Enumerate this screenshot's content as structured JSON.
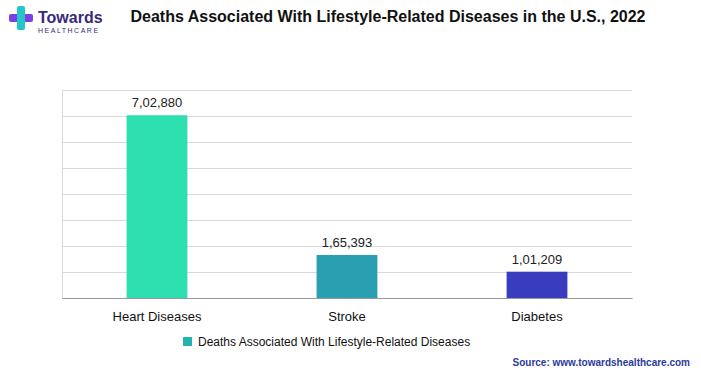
{
  "chart_data": {
    "type": "bar",
    "title": "Deaths Associated With Lifestyle-Related Diseases in the U.S., 2022",
    "brand": "Towards",
    "brand_sub": "HEALTHCARE",
    "source": "Source: www.towardshealthcare.com",
    "categories": [
      "Heart Diseases",
      "Stroke",
      "Diabetes"
    ],
    "series": [
      {
        "name": "Deaths Associated With Lifestyle-Related Diseases",
        "values": [
          702880,
          165393,
          101209
        ],
        "value_labels": [
          "7,02,880",
          "1,65,393",
          "1,01,209"
        ],
        "color": "#27b2b0",
        "colors": [
          "#2ee0b0",
          "#2a9fb2",
          "#3a3cc0"
        ]
      }
    ],
    "ylim": [
      0,
      800000
    ],
    "yticks": [
      0,
      100000,
      200000,
      300000,
      400000,
      500000,
      600000,
      700000,
      800000
    ],
    "grid": true,
    "data_labels": true,
    "tick_labels": "x",
    "legend": "bottom"
  }
}
